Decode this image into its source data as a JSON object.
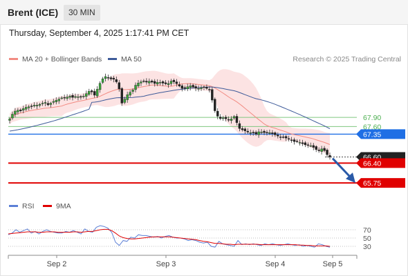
{
  "header": {
    "instrument": "Brent (ICE)",
    "timeframe": "30 MIN",
    "datetime": "Thursday, September 4, 2025 1:17:41 PM CET"
  },
  "legend": {
    "bollinger": {
      "label": "MA 20 + Bollinger Bands",
      "color": "#f28b82"
    },
    "ma50": {
      "label": "MA 50",
      "color": "#3d5a99"
    },
    "credit": "Research © 2025 Trading Central"
  },
  "rsi_legend": {
    "rsi": {
      "label": "RSI",
      "color": "#5b7fd6"
    },
    "ma9": {
      "label": "9MA",
      "color": "#e00000"
    }
  },
  "chart_data": [
    {
      "type": "candlestick",
      "title": "",
      "x_ticks": [
        "Sep 2",
        "Sep 3",
        "Sep 4",
        "Sep 5"
      ],
      "ylim": [
        65.3,
        69.6
      ],
      "levels": [
        {
          "value": 67.9,
          "label": "67.90",
          "kind": "resistance",
          "color": "#7fc77f"
        },
        {
          "value": 67.6,
          "label": "67.60",
          "kind": "resistance",
          "color": "#7fc77f"
        },
        {
          "value": 67.35,
          "label": "67.35",
          "kind": "pivot",
          "color": "#1f6fe5"
        },
        {
          "value": 66.6,
          "label": "66.60",
          "kind": "last-price",
          "color": "#222222"
        },
        {
          "value": 66.4,
          "label": "66.40",
          "kind": "support",
          "color": "#e00000"
        },
        {
          "value": 65.75,
          "label": "65.75",
          "kind": "support",
          "color": "#e00000"
        }
      ],
      "price_path": [
        67.85,
        68.05,
        68.15,
        68.1,
        68.2,
        68.25,
        68.25,
        68.3,
        68.3,
        68.35,
        68.4,
        68.3,
        68.4,
        68.45,
        68.5,
        68.55,
        68.55,
        68.6,
        68.55,
        68.6,
        68.55,
        68.6,
        68.7,
        68.8,
        68.6,
        68.85,
        69.1,
        69.25,
        69.2,
        69.15,
        69.15,
        68.9,
        68.3,
        68.6,
        68.7,
        68.8,
        69.0,
        69.05,
        69.1,
        69.05,
        69.1,
        69.0,
        69.05,
        69.05,
        69.0,
        69.0,
        69.1,
        69.05,
        68.95,
        68.85,
        68.85,
        68.95,
        68.9,
        68.85,
        68.85,
        68.9,
        68.85,
        68.8,
        68.2,
        67.95,
        67.85,
        67.9,
        67.8,
        67.85,
        67.95,
        67.55,
        67.5,
        67.45,
        67.4,
        67.4,
        67.35,
        67.45,
        67.4,
        67.4,
        67.4,
        67.35,
        67.3,
        67.25,
        67.25,
        67.2,
        67.15,
        67.1,
        67.1,
        67.05,
        67.0,
        67.0,
        66.95,
        66.85,
        66.8,
        66.9,
        66.7,
        66.6
      ],
      "forecast": {
        "from": 66.6,
        "to": 65.75
      }
    },
    {
      "type": "line",
      "title": "",
      "ylim": [
        15,
        95
      ],
      "y_ticks": [
        30,
        50,
        70
      ],
      "series": [
        {
          "name": "RSI",
          "values": [
            58,
            62,
            70,
            64,
            68,
            72,
            62,
            66,
            60,
            66,
            70,
            66,
            64,
            62,
            62,
            66,
            64,
            68,
            64,
            60,
            72,
            66,
            64,
            76,
            80,
            78,
            74,
            64,
            40,
            32,
            44,
            42,
            52,
            50,
            58,
            56,
            56,
            54,
            52,
            54,
            50,
            54,
            56,
            52,
            50,
            50,
            48,
            44,
            46,
            44,
            40,
            38,
            40,
            30,
            28,
            42,
            36,
            34,
            32,
            30,
            44,
            34,
            36,
            34,
            36,
            34,
            32,
            36,
            34,
            36,
            34,
            32,
            34,
            36,
            34,
            32,
            34,
            30,
            32,
            30,
            28,
            36,
            34,
            30,
            28
          ]
        },
        {
          "name": "9MA",
          "values": [
            60,
            61,
            62,
            63,
            64,
            65,
            65,
            65,
            64,
            64,
            65,
            65,
            65,
            64,
            64,
            64,
            64,
            65,
            65,
            64,
            65,
            66,
            66,
            68,
            70,
            71,
            71,
            68,
            62,
            55,
            51,
            49,
            48,
            48,
            49,
            50,
            51,
            52,
            53,
            53,
            53,
            53,
            53,
            52,
            51,
            50,
            49,
            48,
            47,
            46,
            44,
            42,
            41,
            39,
            37,
            37,
            36,
            35,
            35,
            34,
            35,
            35,
            35,
            35,
            35,
            35,
            34,
            34,
            34,
            34,
            34,
            34,
            34,
            34,
            34,
            34,
            33,
            33,
            32,
            32,
            31,
            31,
            31,
            31,
            30
          ]
        }
      ]
    }
  ]
}
